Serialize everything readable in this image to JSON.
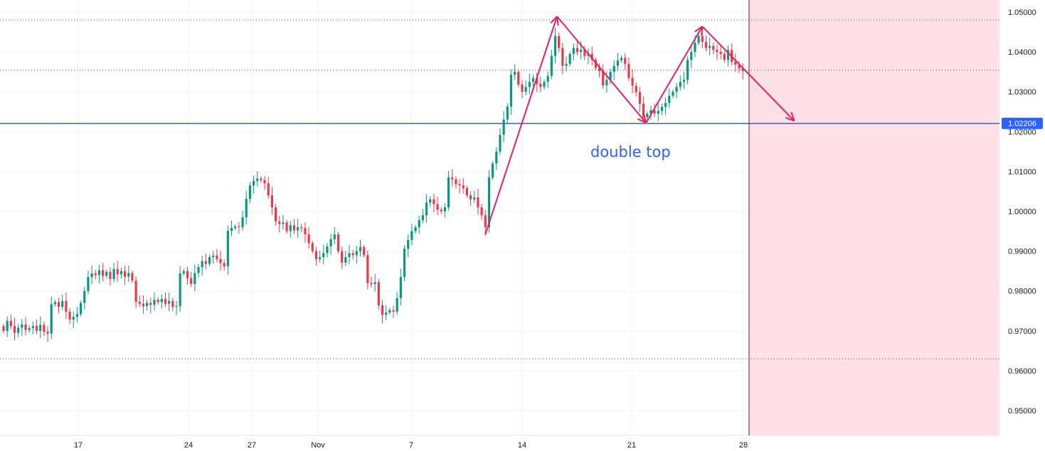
{
  "chart_data": {
    "type": "candlestick",
    "timeframe_hint": "4-hour bars",
    "colors": {
      "up": "#089981",
      "down": "#f23645",
      "pattern": "#e91e63",
      "level": "#2962ff",
      "future_zone": "#ffe0e6",
      "now_line": "#880e2f"
    },
    "first_open": 0.9712,
    "closes": [
      0.97,
      0.9725,
      0.9712,
      0.9695,
      0.9708,
      0.9716,
      0.9702,
      0.9707,
      0.9712,
      0.97,
      0.9715,
      0.9698,
      0.9693,
      0.9767,
      0.9772,
      0.976,
      0.9775,
      0.9748,
      0.9728,
      0.9735,
      0.9742,
      0.977,
      0.98,
      0.9835,
      0.9844,
      0.984,
      0.9852,
      0.9838,
      0.9848,
      0.983,
      0.9855,
      0.9842,
      0.985,
      0.9836,
      0.9845,
      0.9826,
      0.9773,
      0.9768,
      0.9762,
      0.977,
      0.9765,
      0.9778,
      0.9772,
      0.978,
      0.9768,
      0.9775,
      0.976,
      0.9762,
      0.9844,
      0.985,
      0.9832,
      0.9818,
      0.9845,
      0.986,
      0.9875,
      0.9868,
      0.9885,
      0.9889,
      0.988,
      0.987,
      0.9862,
      0.9951,
      0.9958,
      0.9962,
      0.996,
      0.9985,
      1.0031,
      1.0065,
      1.0076,
      1.0082,
      1.0078,
      1.007,
      1.004,
      1.001,
      0.9975,
      0.9968,
      0.9972,
      0.995,
      0.9965,
      0.9952,
      0.996,
      0.9958,
      0.9942,
      0.992,
      0.99,
      0.988,
      0.9885,
      0.9895,
      0.9912,
      0.993,
      0.9942,
      0.99,
      0.9871,
      0.9885,
      0.9895,
      0.989,
      0.99,
      0.991,
      0.989,
      0.982,
      0.9817,
      0.9822,
      0.9764,
      0.974,
      0.9746,
      0.9752,
      0.9748,
      0.9782,
      0.9835,
      0.9906,
      0.9928,
      0.995,
      0.996,
      0.9978,
      0.999,
      1.0022,
      1.003,
      1.0018,
      1.0004,
      1.0,
      1.001,
      1.0085,
      1.008,
      1.0068,
      1.0065,
      1.0058,
      1.004,
      1.003,
      1.0035,
      1.001,
      0.999,
      0.996,
      1.0085,
      1.012,
      1.015,
      1.0192,
      1.023,
      1.0263,
      1.0343,
      1.035,
      1.0318,
      1.03,
      1.0312,
      1.0325,
      1.0334,
      1.032,
      1.0312,
      1.0325,
      1.034,
      1.039,
      1.044,
      1.041,
      1.0365,
      1.037,
      1.0395,
      1.041,
      1.04,
      1.0406,
      1.039,
      1.0395,
      1.038,
      1.036,
      1.0352,
      1.0316,
      1.033,
      1.035,
      1.0365,
      1.0379,
      1.0385,
      1.037,
      1.0335,
      1.0315,
      1.0299,
      1.027,
      1.0236,
      1.0245,
      1.0254,
      1.0245,
      1.0252,
      1.0262,
      1.0272,
      1.029,
      1.03,
      1.0312,
      1.0325,
      1.033,
      1.038,
      1.04,
      1.0423,
      1.044,
      1.0425,
      1.041,
      1.0415,
      1.0405,
      1.04,
      1.0395,
      1.038,
      1.0405,
      1.0375,
      1.0368,
      1.0358,
      1.0352
    ],
    "y_ticks": [
      "1.05000",
      "1.04000",
      "1.03000",
      "1.02000",
      "1.01000",
      "1.00000",
      "0.99000",
      "0.98000",
      "0.97000",
      "0.96000",
      "0.95000"
    ],
    "ylim": [
      0.944,
      1.053
    ],
    "x_ticks": [
      "17",
      "24",
      "27",
      "Nov",
      "7",
      "14",
      "21",
      "28"
    ],
    "horizontal_level": {
      "value": 1.02206,
      "label": "1.02206"
    },
    "dotted_levels": [
      1.048,
      1.0354,
      0.963
    ],
    "pattern_points": [
      {
        "bar": 131,
        "price": 0.9942
      },
      {
        "bar": 150.5,
        "price": 1.0489
      },
      {
        "bar": 174.7,
        "price": 1.0222
      },
      {
        "bar": 190,
        "price": 1.0464
      },
      {
        "bar": 215,
        "price": 1.0227
      }
    ],
    "annotation": "double top",
    "grid": true
  }
}
